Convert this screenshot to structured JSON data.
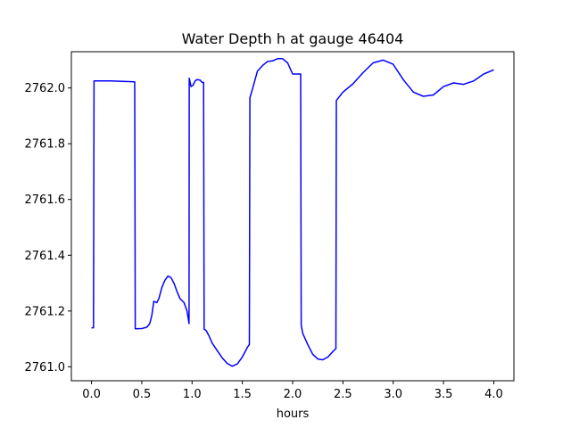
{
  "chart_data": {
    "type": "line",
    "title": "Water Depth h at gauge 46404",
    "xlabel": "hours",
    "ylabel": "",
    "xlim": [
      -0.2,
      4.2
    ],
    "ylim": [
      2760.95,
      2762.13
    ],
    "grid": false,
    "legend": "none",
    "xticks": [
      0.0,
      0.5,
      1.0,
      1.5,
      2.0,
      2.5,
      3.0,
      3.5,
      4.0
    ],
    "xtick_labels": [
      "0.0",
      "0.5",
      "1.0",
      "1.5",
      "2.0",
      "2.5",
      "3.0",
      "3.5",
      "4.0"
    ],
    "yticks": [
      2761.0,
      2761.2,
      2761.4,
      2761.6,
      2761.8,
      2762.0
    ],
    "ytick_labels": [
      "2761.0",
      "2761.2",
      "2761.4",
      "2761.6",
      "2761.8",
      "2762.0"
    ],
    "series": [
      {
        "color": "#0000ff",
        "x": [
          0.0,
          0.02,
          0.025,
          0.2,
          0.43,
          0.435,
          0.5,
          0.55,
          0.58,
          0.6,
          0.62,
          0.65,
          0.67,
          0.7,
          0.73,
          0.76,
          0.79,
          0.82,
          0.85,
          0.88,
          0.92,
          0.95,
          0.97,
          0.972,
          0.99,
          1.01,
          1.03,
          1.05,
          1.08,
          1.1,
          1.115,
          1.12,
          1.14,
          1.17,
          1.2,
          1.25,
          1.3,
          1.35,
          1.4,
          1.45,
          1.5,
          1.55,
          1.57,
          1.575,
          1.6,
          1.65,
          1.7,
          1.75,
          1.8,
          1.85,
          1.9,
          1.95,
          2.0,
          2.05,
          2.08,
          2.085,
          2.1,
          2.15,
          2.2,
          2.25,
          2.3,
          2.35,
          2.4,
          2.43,
          2.435,
          2.5,
          2.6,
          2.7,
          2.8,
          2.9,
          3.0,
          3.1,
          3.2,
          3.3,
          3.4,
          3.5,
          3.6,
          3.7,
          3.8,
          3.9,
          4.0
        ],
        "y": [
          2761.14,
          2761.14,
          2762.025,
          2762.025,
          2762.022,
          2761.136,
          2761.137,
          2761.142,
          2761.155,
          2761.185,
          2761.235,
          2761.23,
          2761.245,
          2761.285,
          2761.31,
          2761.325,
          2761.32,
          2761.3,
          2761.27,
          2761.245,
          2761.23,
          2761.2,
          2761.155,
          2762.035,
          2762.005,
          2762.01,
          2762.025,
          2762.03,
          2762.028,
          2762.02,
          2762.02,
          2761.135,
          2761.13,
          2761.11,
          2761.085,
          2761.058,
          2761.032,
          2761.012,
          2761.002,
          2761.01,
          2761.035,
          2761.07,
          2761.08,
          2761.965,
          2761.995,
          2762.06,
          2762.08,
          2762.095,
          2762.097,
          2762.105,
          2762.105,
          2762.09,
          2762.05,
          2762.05,
          2762.05,
          2761.15,
          2761.12,
          2761.08,
          2761.045,
          2761.028,
          2761.025,
          2761.035,
          2761.055,
          2761.065,
          2761.955,
          2761.985,
          2762.015,
          2762.055,
          2762.09,
          2762.1,
          2762.085,
          2762.03,
          2761.985,
          2761.97,
          2761.975,
          2762.005,
          2762.018,
          2762.013,
          2762.025,
          2762.05,
          2762.065
        ]
      }
    ]
  }
}
